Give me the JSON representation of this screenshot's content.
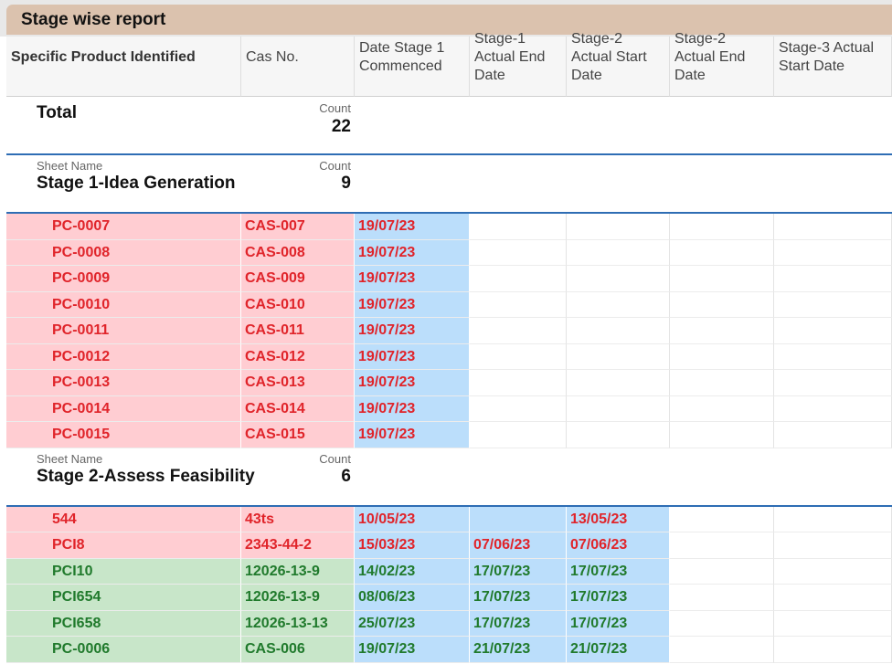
{
  "title": "Stage wise report",
  "columns": [
    "Specific Product Identified",
    "Cas No.",
    "Date Stage 1 Commenced",
    "Stage-1 Actual End Date",
    "Stage-2 Actual Start Date",
    "Stage-2 Actual End Date",
    "Stage-3 Actual Start Date"
  ],
  "total": {
    "label": "Total",
    "count_label": "Count",
    "count": "22"
  },
  "groups": [
    {
      "sheet_label": "Sheet Name",
      "name": "Stage 1-Idea Generation",
      "count_label": "Count",
      "count": "9",
      "rows": [
        {
          "product": "PC-0007",
          "cas": "CAS-007",
          "d1": "19/07/23",
          "d2": "",
          "d3": "",
          "status": "red"
        },
        {
          "product": "PC-0008",
          "cas": "CAS-008",
          "d1": "19/07/23",
          "d2": "",
          "d3": "",
          "status": "red"
        },
        {
          "product": "PC-0009",
          "cas": "CAS-009",
          "d1": "19/07/23",
          "d2": "",
          "d3": "",
          "status": "red"
        },
        {
          "product": "PC-0010",
          "cas": "CAS-010",
          "d1": "19/07/23",
          "d2": "",
          "d3": "",
          "status": "red"
        },
        {
          "product": "PC-0011",
          "cas": "CAS-011",
          "d1": "19/07/23",
          "d2": "",
          "d3": "",
          "status": "red"
        },
        {
          "product": "PC-0012",
          "cas": "CAS-012",
          "d1": "19/07/23",
          "d2": "",
          "d3": "",
          "status": "red"
        },
        {
          "product": "PC-0013",
          "cas": "CAS-013",
          "d1": "19/07/23",
          "d2": "",
          "d3": "",
          "status": "red"
        },
        {
          "product": "PC-0014",
          "cas": "CAS-014",
          "d1": "19/07/23",
          "d2": "",
          "d3": "",
          "status": "red"
        },
        {
          "product": "PC-0015",
          "cas": "CAS-015",
          "d1": "19/07/23",
          "d2": "",
          "d3": "",
          "status": "red"
        }
      ]
    },
    {
      "sheet_label": "Sheet Name",
      "name": "Stage 2-Assess Feasibility",
      "count_label": "Count",
      "count": "6",
      "rows": [
        {
          "product": "544",
          "cas": "43ts",
          "d1": "10/05/23",
          "d2": "",
          "d3": "13/05/23",
          "status": "red"
        },
        {
          "product": "PCI8",
          "cas": "2343-44-2",
          "d1": "15/03/23",
          "d2": "07/06/23",
          "d3": "07/06/23",
          "status": "red"
        },
        {
          "product": "PCI10",
          "cas": "12026-13-9",
          "d1": "14/02/23",
          "d2": "17/07/23",
          "d3": "17/07/23",
          "status": "green"
        },
        {
          "product": "PCI654",
          "cas": "12026-13-9",
          "d1": "08/06/23",
          "d2": "17/07/23",
          "d3": "17/07/23",
          "status": "green"
        },
        {
          "product": "PCI658",
          "cas": "12026-13-13",
          "d1": "25/07/23",
          "d2": "17/07/23",
          "d3": "17/07/23",
          "status": "green"
        },
        {
          "product": "PC-0006",
          "cas": "CAS-006",
          "d1": "19/07/23",
          "d2": "21/07/23",
          "d3": "21/07/23",
          "status": "green"
        }
      ]
    }
  ],
  "colors": {
    "title_bar": "#dbc2ae",
    "late_text": "#e0242a",
    "late_bg": "#ffcdd2",
    "ok_text": "#207a2c",
    "ok_bg": "#c8e6c9",
    "date_bg": "#bbdefb",
    "group_divider": "#2e6db4"
  }
}
